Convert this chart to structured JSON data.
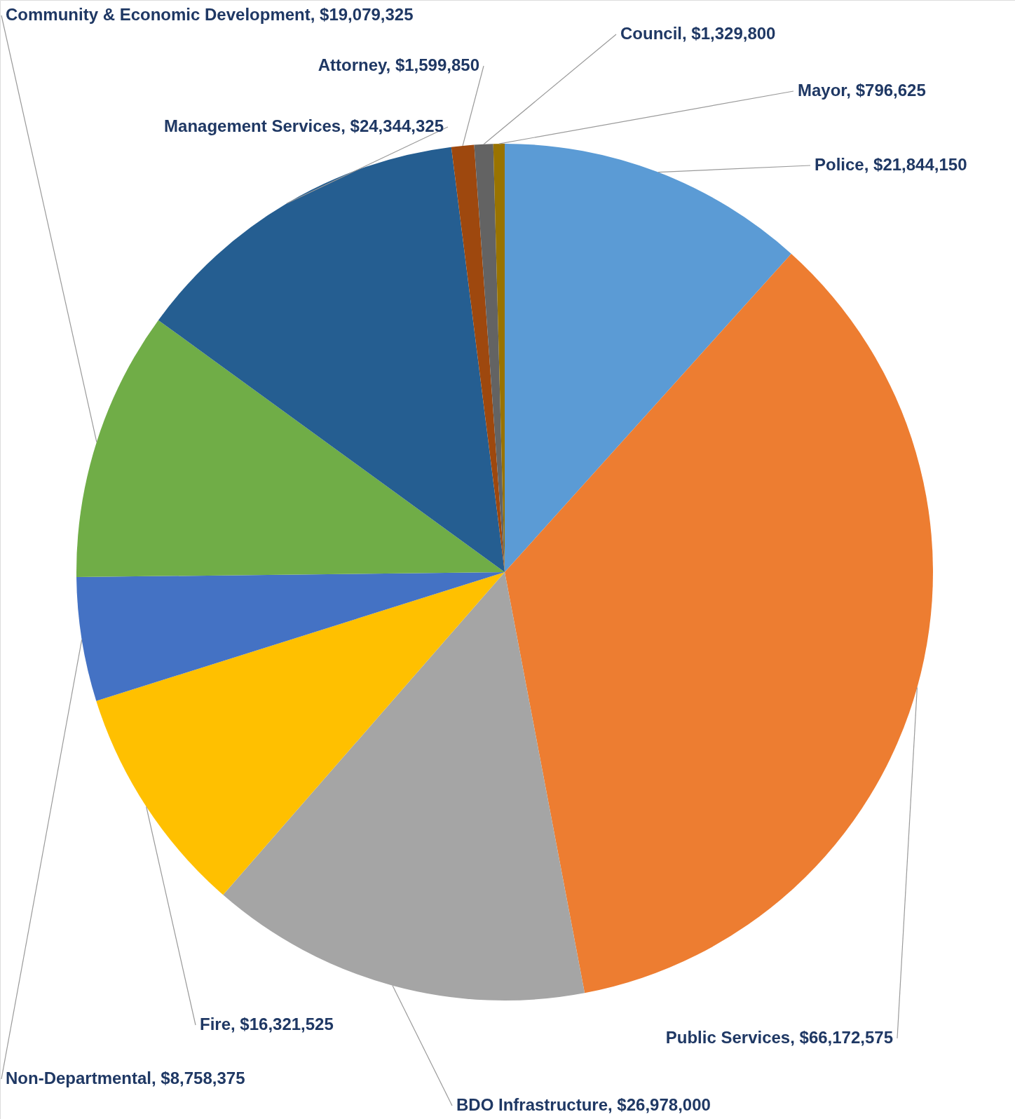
{
  "chart_data": {
    "type": "pie",
    "categories": [
      "Police",
      "Public Services",
      "BDO Infrastructure",
      "Fire",
      "Non-Departmental",
      "Community & Economic Development",
      "Management Services",
      "Attorney",
      "Council",
      "Mayor"
    ],
    "values": [
      21844150,
      66172575,
      26978000,
      16321525,
      8758375,
      19079325,
      24344325,
      1599850,
      1329800,
      796625
    ],
    "value_labels": [
      "$21,844,150",
      "$66,172,575",
      "$26,978,000",
      "$16,321,525",
      "$8,758,375",
      "$19,079,325",
      "$24,344,325",
      "$1,599,850",
      "$1,329,800",
      "$796,625"
    ],
    "colors": [
      "#5b9bd5",
      "#ed7d31",
      "#a5a5a5",
      "#ffc000",
      "#4472c4",
      "#70ad47",
      "#255e91",
      "#9e480e",
      "#636363",
      "#997300"
    ]
  }
}
